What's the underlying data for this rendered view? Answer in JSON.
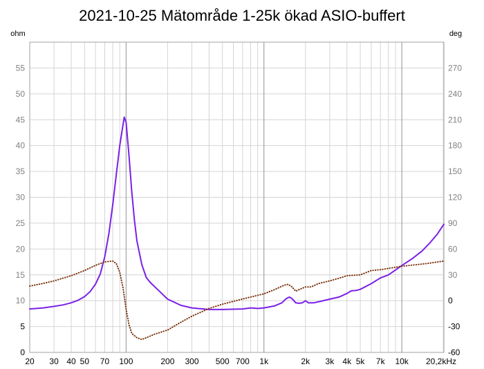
{
  "chart_data": {
    "type": "line",
    "title": "2021-10-25 Mätområde 1-25k ökad ASIO-buffert",
    "left_axis_label": "ohm",
    "right_axis_label": "deg",
    "x_scale": "log",
    "xlim": [
      20,
      20200
    ],
    "ylim_left": [
      0,
      60
    ],
    "ylim_right": [
      -60,
      300
    ],
    "x_tick_labels": [
      {
        "v": 20,
        "t": "20"
      },
      {
        "v": 30,
        "t": "30"
      },
      {
        "v": 40,
        "t": "40"
      },
      {
        "v": 50,
        "t": "50"
      },
      {
        "v": 70,
        "t": "70"
      },
      {
        "v": 100,
        "t": "100"
      },
      {
        "v": 200,
        "t": "200"
      },
      {
        "v": 300,
        "t": "300"
      },
      {
        "v": 500,
        "t": "500"
      },
      {
        "v": 700,
        "t": "700"
      },
      {
        "v": 1000,
        "t": "1k"
      },
      {
        "v": 2000,
        "t": "2k"
      },
      {
        "v": 3000,
        "t": "3k"
      },
      {
        "v": 4000,
        "t": "4k"
      },
      {
        "v": 5000,
        "t": "5k"
      },
      {
        "v": 7000,
        "t": "7k"
      },
      {
        "v": 10000,
        "t": "10k"
      },
      {
        "v": 20200,
        "t": "20,2kHz"
      }
    ],
    "left_ticks": [
      {
        "v": 0,
        "t": "0"
      },
      {
        "v": 5,
        "t": "5"
      },
      {
        "v": 10,
        "t": "10"
      },
      {
        "v": 15,
        "t": "15"
      },
      {
        "v": 20,
        "t": "20"
      },
      {
        "v": 25,
        "t": "25"
      },
      {
        "v": 30,
        "t": "30"
      },
      {
        "v": 35,
        "t": "35"
      },
      {
        "v": 40,
        "t": "40"
      },
      {
        "v": 45,
        "t": "45"
      },
      {
        "v": 50,
        "t": "50"
      },
      {
        "v": 55,
        "t": "55"
      }
    ],
    "right_ticks": [
      {
        "v": -60,
        "t": "-60"
      },
      {
        "v": -30,
        "t": "-30"
      },
      {
        "v": 0,
        "t": "0"
      },
      {
        "v": 30,
        "t": "30"
      },
      {
        "v": 60,
        "t": "60"
      },
      {
        "v": 90,
        "t": "90"
      },
      {
        "v": 120,
        "t": "120"
      },
      {
        "v": 150,
        "t": "150"
      },
      {
        "v": 180,
        "t": "180"
      },
      {
        "v": 210,
        "t": "210"
      },
      {
        "v": 240,
        "t": "240"
      },
      {
        "v": 270,
        "t": "270"
      }
    ],
    "grid": true,
    "colors": {
      "impedance": "#7a1fe8",
      "phase": "#7a2e08",
      "grid_minor": "#d4d4d4",
      "grid_major": "#909090"
    },
    "series": [
      {
        "axis": "left",
        "style": "solid",
        "points": [
          [
            20,
            8.4
          ],
          [
            25,
            8.6
          ],
          [
            30,
            8.9
          ],
          [
            35,
            9.2
          ],
          [
            40,
            9.6
          ],
          [
            45,
            10.1
          ],
          [
            50,
            10.8
          ],
          [
            55,
            11.8
          ],
          [
            60,
            13.2
          ],
          [
            65,
            15.2
          ],
          [
            70,
            18.5
          ],
          [
            75,
            23.0
          ],
          [
            80,
            28.5
          ],
          [
            85,
            34.5
          ],
          [
            90,
            40.0
          ],
          [
            95,
            44.0
          ],
          [
            97,
            45.5
          ],
          [
            100,
            44.5
          ],
          [
            105,
            38.0
          ],
          [
            110,
            31.0
          ],
          [
            115,
            25.5
          ],
          [
            120,
            21.5
          ],
          [
            130,
            17.0
          ],
          [
            140,
            14.5
          ],
          [
            150,
            13.5
          ],
          [
            175,
            11.8
          ],
          [
            200,
            10.3
          ],
          [
            250,
            9.1
          ],
          [
            300,
            8.6
          ],
          [
            400,
            8.3
          ],
          [
            500,
            8.3
          ],
          [
            700,
            8.4
          ],
          [
            800,
            8.6
          ],
          [
            900,
            8.5
          ],
          [
            1000,
            8.6
          ],
          [
            1200,
            9.0
          ],
          [
            1350,
            9.6
          ],
          [
            1450,
            10.4
          ],
          [
            1530,
            10.7
          ],
          [
            1600,
            10.4
          ],
          [
            1700,
            9.6
          ],
          [
            1800,
            9.5
          ],
          [
            1900,
            9.6
          ],
          [
            2000,
            10.0
          ],
          [
            2100,
            9.6
          ],
          [
            2300,
            9.6
          ],
          [
            2600,
            9.9
          ],
          [
            3000,
            10.3
          ],
          [
            3500,
            10.7
          ],
          [
            4000,
            11.4
          ],
          [
            4300,
            11.9
          ],
          [
            4700,
            12.0
          ],
          [
            5000,
            12.2
          ],
          [
            6000,
            13.3
          ],
          [
            7000,
            14.4
          ],
          [
            8000,
            15.0
          ],
          [
            10000,
            16.8
          ],
          [
            12000,
            18.2
          ],
          [
            14000,
            19.6
          ],
          [
            16000,
            21.2
          ],
          [
            18000,
            22.8
          ],
          [
            20200,
            24.8
          ]
        ]
      },
      {
        "axis": "right",
        "style": "dotted",
        "points": [
          [
            20,
            17
          ],
          [
            25,
            20
          ],
          [
            30,
            23
          ],
          [
            40,
            29
          ],
          [
            50,
            35
          ],
          [
            60,
            41
          ],
          [
            70,
            45
          ],
          [
            80,
            46
          ],
          [
            85,
            43
          ],
          [
            90,
            33
          ],
          [
            95,
            15
          ],
          [
            100,
            -10
          ],
          [
            105,
            -28
          ],
          [
            110,
            -38
          ],
          [
            120,
            -43
          ],
          [
            130,
            -45
          ],
          [
            140,
            -43
          ],
          [
            160,
            -39
          ],
          [
            200,
            -34
          ],
          [
            250,
            -25
          ],
          [
            300,
            -18
          ],
          [
            400,
            -9
          ],
          [
            500,
            -4
          ],
          [
            700,
            2
          ],
          [
            1000,
            8
          ],
          [
            1200,
            13
          ],
          [
            1400,
            18
          ],
          [
            1500,
            19
          ],
          [
            1600,
            16
          ],
          [
            1700,
            11
          ],
          [
            1800,
            13
          ],
          [
            2000,
            16
          ],
          [
            2200,
            16
          ],
          [
            2500,
            20
          ],
          [
            3000,
            23
          ],
          [
            3500,
            26
          ],
          [
            4000,
            29
          ],
          [
            5000,
            30
          ],
          [
            6000,
            35
          ],
          [
            7000,
            36
          ],
          [
            10000,
            40
          ],
          [
            15000,
            43
          ],
          [
            20200,
            46
          ]
        ]
      }
    ]
  }
}
